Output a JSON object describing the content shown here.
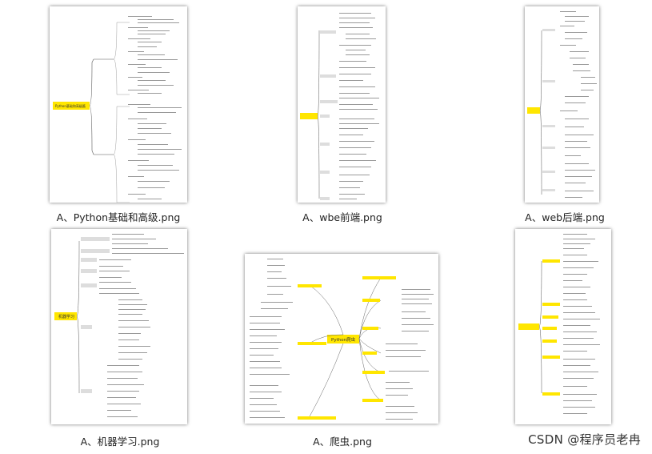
{
  "files": [
    {
      "id": "python-basics",
      "caption": "A、Python基础和高级.png"
    },
    {
      "id": "wbe-frontend",
      "caption": "A、wbe前端.png"
    },
    {
      "id": "web-backend",
      "caption": "A、web后端.png"
    },
    {
      "id": "machine-learning",
      "caption": "A、机器学习.png"
    },
    {
      "id": "crawler",
      "caption": "A、爬虫.png"
    },
    {
      "id": "data-analysis",
      "caption": ""
    }
  ],
  "mindmaps": {
    "python": {
      "root": "Python基础和高级篇"
    },
    "crawler": {
      "root": "Python爬虫"
    },
    "ml": {
      "root": "机器学习"
    }
  },
  "watermark": "CSDN @程序员老冉"
}
